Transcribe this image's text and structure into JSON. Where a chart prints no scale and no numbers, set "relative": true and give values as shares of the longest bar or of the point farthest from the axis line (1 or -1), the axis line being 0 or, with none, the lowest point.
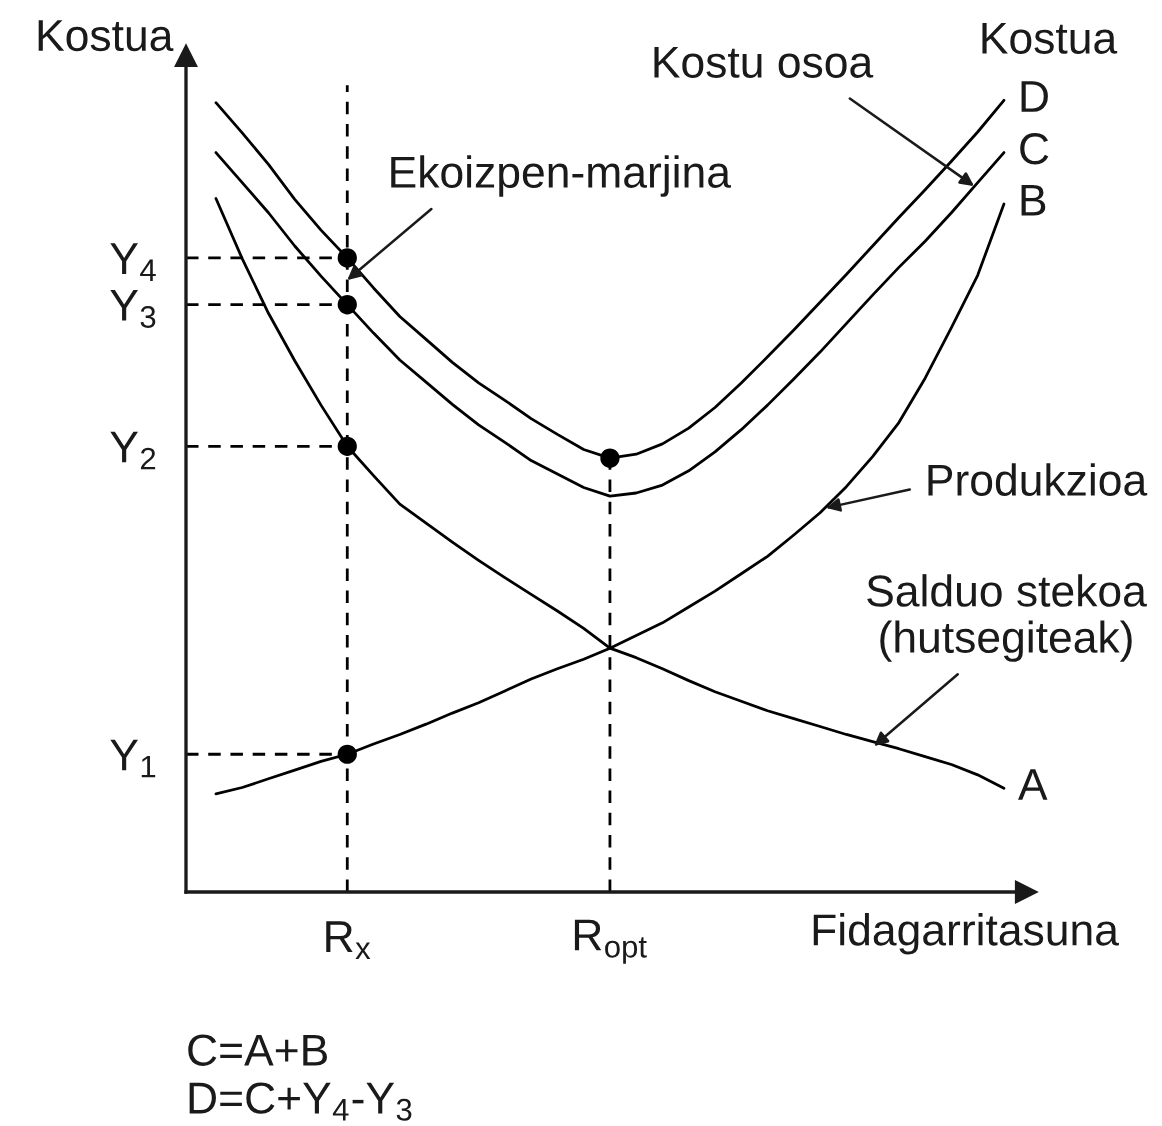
{
  "chart_data": {
    "type": "line",
    "ylabel": "Kostua",
    "xlabel": "Fidagarritasuna",
    "relative": true,
    "categories": [
      null,
      null,
      null,
      null,
      null,
      "R$_{x}$",
      null,
      null,
      null,
      null,
      null,
      null,
      null,
      null,
      null,
      "R$_{opt}$",
      null,
      null,
      null,
      null,
      null,
      null,
      null,
      null,
      null,
      null,
      null,
      null,
      null,
      null,
      null
    ],
    "series": [
      {
        "name": "D",
        "color": "#000000",
        "values": [
          0.997,
          0.959,
          0.919,
          0.875,
          0.836,
          0.801,
          0.763,
          0.727,
          0.698,
          0.669,
          0.643,
          0.621,
          0.598,
          0.578,
          0.559,
          0.548,
          0.553,
          0.566,
          0.586,
          0.612,
          0.643,
          0.676,
          0.71,
          0.745,
          0.78,
          0.816,
          0.852,
          0.887,
          0.923,
          0.96,
          1
        ]
      },
      {
        "name": "C",
        "color": "#000000",
        "values": [
          0.934,
          0.896,
          0.858,
          0.816,
          0.778,
          0.742,
          0.706,
          0.672,
          0.644,
          0.616,
          0.59,
          0.568,
          0.545,
          0.528,
          0.511,
          0.5,
          0.504,
          0.514,
          0.532,
          0.556,
          0.584,
          0.615,
          0.648,
          0.682,
          0.718,
          0.754,
          0.789,
          0.822,
          0.858,
          0.896,
          0.934
        ]
      },
      {
        "name": "B",
        "color": "#000000",
        "values": [
          0.124,
          0.132,
          0.143,
          0.154,
          0.165,
          0.174,
          0.187,
          0.199,
          0.212,
          0.226,
          0.239,
          0.254,
          0.269,
          0.282,
          0.294,
          0.308,
          0.324,
          0.34,
          0.36,
          0.38,
          0.402,
          0.424,
          0.451,
          0.479,
          0.512,
          0.55,
          0.593,
          0.649,
          0.713,
          0.779,
          0.869
        ]
      },
      {
        "name": "A",
        "color": "#000000",
        "values": [
          0.876,
          0.8,
          0.731,
          0.671,
          0.615,
          0.563,
          0.526,
          0.49,
          0.466,
          0.442,
          0.419,
          0.397,
          0.376,
          0.355,
          0.333,
          0.308,
          0.296,
          0.282,
          0.267,
          0.253,
          0.241,
          0.229,
          0.219,
          0.209,
          0.199,
          0.19,
          0.181,
          0.171,
          0.161,
          0.148,
          0.131
        ]
      },
      {
        "type": "scatter",
        "color": "#000000",
        "marker": "circle",
        "values": [
          null,
          null,
          null,
          null,
          null,
          0.801,
          null,
          null,
          null,
          null,
          null,
          null,
          null,
          null,
          null,
          null,
          null,
          null,
          null,
          null,
          null,
          null,
          null,
          null,
          null,
          null,
          null,
          null,
          null,
          null,
          null
        ]
      },
      {
        "type": "scatter",
        "color": "#000000",
        "marker": "circle",
        "values": [
          null,
          null,
          null,
          null,
          null,
          0.742,
          null,
          null,
          null,
          null,
          null,
          null,
          null,
          null,
          null,
          null,
          null,
          null,
          null,
          null,
          null,
          null,
          null,
          null,
          null,
          null,
          null,
          null,
          null,
          null,
          null
        ]
      },
      {
        "type": "scatter",
        "color": "#000000",
        "marker": "circle",
        "values": [
          null,
          null,
          null,
          null,
          null,
          0.563,
          null,
          null,
          null,
          null,
          null,
          null,
          null,
          null,
          null,
          null,
          null,
          null,
          null,
          null,
          null,
          null,
          null,
          null,
          null,
          null,
          null,
          null,
          null,
          null,
          null
        ]
      },
      {
        "type": "scatter",
        "color": "#000000",
        "marker": "circle",
        "values": [
          null,
          null,
          null,
          null,
          null,
          0.174,
          null,
          null,
          null,
          null,
          null,
          null,
          null,
          null,
          null,
          null,
          null,
          null,
          null,
          null,
          null,
          null,
          null,
          null,
          null,
          null,
          null,
          null,
          null,
          null,
          null
        ]
      },
      {
        "type": "lollipop",
        "color": "#000000",
        "marker": "circle",
        "line_style": "dashed",
        "values": [
          null,
          null,
          null,
          null,
          null,
          null,
          null,
          null,
          null,
          null,
          null,
          null,
          null,
          null,
          null,
          0.548,
          null,
          null,
          null,
          null,
          null,
          null,
          null,
          null,
          null,
          null,
          null,
          null,
          null,
          null,
          null
        ]
      }
    ],
    "ref_lines": [
      {
        "axis": "y",
        "value": 0.174,
        "label": "Y$_{1}$",
        "color": "#000000",
        "line_style": "dashed"
      },
      {
        "axis": "y",
        "value": 0.563,
        "label": "Y$_{2}$",
        "color": "#000000",
        "line_style": "dashed"
      },
      {
        "axis": "y",
        "value": 0.742,
        "label": "Y$_{3}$",
        "color": "#000000",
        "line_style": "dashed"
      },
      {
        "axis": "y",
        "value": 0.801,
        "label": "Y$_{4}$",
        "color": "#000000",
        "line_style": "dashed"
      },
      {
        "axis": "x",
        "value": "R$_{x}$",
        "color": "#000000",
        "line_style": "dashed"
      }
    ],
    "annotations": [
      "Kostu osoa",
      {
        "text": "Ekoizpen-marjina",
        "x": "R$_{x}$",
        "y": 0.773
      },
      "Produkzioa",
      "Salduo stekoa\n(hutsegiteak)",
      "Kostua",
      "C=A+B",
      "D=C+Y$_{4}$-Y$_{3}$"
    ]
  }
}
